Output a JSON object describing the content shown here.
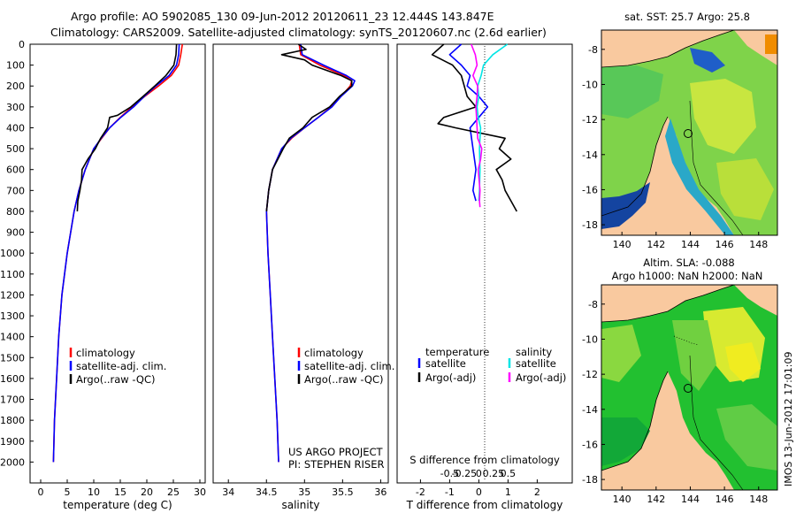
{
  "title": {
    "line1": "Argo profile: AO 5902085_130 09-Jun-2012 20120611_23 12.444S 143.847E",
    "line2": "Climatology: CARS2009. Satellite-adjusted climatology: synTS_20120607.nc (2.6d earlier)"
  },
  "colors": {
    "climatology": "#ff0000",
    "satellite": "#0000ff",
    "argo": "#000000",
    "salinity_satellite": "#00e5e5",
    "salinity_argo": "#ff00ff",
    "land": "#f9c99f"
  },
  "chart_data": [
    {
      "name": "temperature",
      "type": "line",
      "xlabel": "temperature (deg C)",
      "ylabel": "",
      "xlim": [
        -2,
        31
      ],
      "ylim": [
        2100,
        0
      ],
      "xticks": [
        "0",
        "5",
        "10",
        "15",
        "20",
        "25",
        "30"
      ],
      "xtick_values": [
        0,
        5,
        10,
        15,
        20,
        25,
        30
      ],
      "yticks": [
        "0",
        "100",
        "200",
        "300",
        "400",
        "500",
        "600",
        "700",
        "800",
        "900",
        "1000",
        "1100",
        "1200",
        "1300",
        "1400",
        "1500",
        "1600",
        "1700",
        "1800",
        "1900",
        "2000"
      ],
      "ytick_values": [
        0,
        100,
        200,
        300,
        400,
        500,
        600,
        700,
        800,
        900,
        1000,
        1100,
        1200,
        1300,
        1400,
        1500,
        1600,
        1700,
        1800,
        1900,
        2000
      ],
      "legend": [
        "climatology",
        "satellite-adj. clim.",
        "Argo(..raw -QC)"
      ],
      "series": [
        {
          "name": "climatology",
          "depth": [
            0,
            50,
            100,
            150,
            200,
            250,
            300,
            350,
            400,
            450,
            500,
            600,
            700,
            800,
            1000,
            1200,
            1400,
            1600,
            1800,
            2000
          ],
          "values": [
            26.7,
            26.4,
            26.0,
            24.6,
            22.2,
            19.6,
            17.2,
            15.0,
            13.0,
            11.5,
            10.0,
            8.4,
            7.2,
            6.3,
            5.0,
            4.0,
            3.4,
            3.0,
            2.6,
            2.4
          ]
        },
        {
          "name": "satellite",
          "depth": [
            0,
            50,
            100,
            150,
            200,
            250,
            300,
            350,
            400,
            450,
            500,
            600,
            700,
            800,
            1000,
            1200,
            1400,
            1600,
            1800,
            2000
          ],
          "values": [
            26.1,
            26.0,
            25.6,
            24.2,
            21.7,
            19.5,
            17.5,
            15.1,
            13.0,
            11.4,
            10.0,
            8.4,
            7.2,
            6.3,
            5.0,
            4.0,
            3.4,
            3.0,
            2.6,
            2.4
          ]
        },
        {
          "name": "argo",
          "depth": [
            0,
            50,
            100,
            150,
            200,
            250,
            300,
            340,
            350,
            400,
            450,
            500,
            550,
            600,
            650,
            700,
            750,
            800
          ],
          "values": [
            25.6,
            25.5,
            25.1,
            23.6,
            21.5,
            19.3,
            17.0,
            14.5,
            13.0,
            12.6,
            11.3,
            10.3,
            8.9,
            7.8,
            7.7,
            7.4,
            7.0,
            6.9
          ]
        }
      ]
    },
    {
      "name": "salinity",
      "type": "line",
      "xlabel": "salinity",
      "xlim": [
        33.8,
        36.1
      ],
      "ylim": [
        2100,
        0
      ],
      "xticks": [
        "34",
        "34.5",
        "35",
        "35.5",
        "36"
      ],
      "xtick_values": [
        34,
        34.5,
        35,
        35.5,
        36
      ],
      "legend": [
        "climatology",
        "satellite-adj. clim.",
        "Argo(..raw -QC)"
      ],
      "series": [
        {
          "name": "climatology",
          "depth": [
            0,
            50,
            100,
            150,
            175,
            200,
            250,
            300,
            350,
            400,
            450,
            500,
            600,
            700,
            800,
            1000,
            1200,
            1400,
            1600,
            1800,
            2000
          ],
          "values": [
            34.93,
            34.95,
            35.2,
            35.52,
            35.62,
            35.6,
            35.48,
            35.35,
            35.18,
            35.0,
            34.83,
            34.7,
            34.58,
            34.53,
            34.5,
            34.52,
            34.55,
            34.58,
            34.61,
            34.64,
            34.66
          ]
        },
        {
          "name": "satellite",
          "depth": [
            0,
            50,
            100,
            150,
            175,
            200,
            250,
            300,
            350,
            400,
            450,
            500,
            600,
            700,
            800,
            1000,
            1200,
            1400,
            1600,
            1800,
            2000
          ],
          "values": [
            34.95,
            34.97,
            35.25,
            35.55,
            35.66,
            35.63,
            35.48,
            35.36,
            35.18,
            35.0,
            34.82,
            34.7,
            34.58,
            34.53,
            34.5,
            34.52,
            34.55,
            34.58,
            34.61,
            34.64,
            34.66
          ]
        },
        {
          "name": "argo",
          "depth": [
            0,
            25,
            50,
            75,
            100,
            150,
            175,
            200,
            250,
            300,
            350,
            400,
            450,
            500,
            600,
            700,
            800
          ],
          "values": [
            34.92,
            35.02,
            34.7,
            35.0,
            35.1,
            35.48,
            35.62,
            35.62,
            35.46,
            35.33,
            35.1,
            34.98,
            34.8,
            34.72,
            34.58,
            34.53,
            34.5
          ]
        }
      ]
    },
    {
      "name": "difference",
      "type": "line",
      "xlabel": "T difference from climatology",
      "x2label": "S difference from climatology",
      "xlim": [
        -2.8,
        3.2
      ],
      "ylim": [
        2100,
        0
      ],
      "xticks": [
        "-2",
        "-1",
        "0",
        "1",
        "2"
      ],
      "xtick_values": [
        -2,
        -1,
        0,
        1,
        2
      ],
      "x2ticks": [
        "-0.5",
        "-0.25",
        "0",
        "0.25",
        "0.5"
      ],
      "x2tick_values": [
        -0.5,
        -0.25,
        0,
        0.25,
        0.5
      ],
      "legend": {
        "temperature": [
          "satellite",
          "Argo(-adj)"
        ],
        "salinity": [
          "satellite",
          "Argo(-adj)"
        ],
        "temperature_header": "temperature",
        "salinity_header": "salinity"
      },
      "series": [
        {
          "name": "T satellite",
          "depth": [
            0,
            50,
            100,
            150,
            200,
            250,
            300,
            350,
            400,
            500,
            600,
            700,
            750
          ],
          "values": [
            -0.6,
            -1.0,
            -0.6,
            -0.3,
            -0.4,
            0.0,
            0.3,
            0.0,
            -0.3,
            -0.2,
            -0.1,
            -0.2,
            -0.1
          ]
        },
        {
          "name": "T Argo(-adj)",
          "depth": [
            0,
            50,
            100,
            150,
            200,
            250,
            300,
            350,
            380,
            400,
            450,
            500,
            550,
            600,
            650,
            700,
            750,
            800
          ],
          "values": [
            -1.2,
            -1.6,
            -0.9,
            -0.6,
            -0.5,
            -0.4,
            -0.1,
            -1.2,
            -1.4,
            -0.8,
            0.9,
            0.7,
            1.1,
            0.6,
            0.8,
            0.9,
            1.1,
            1.3
          ]
        },
        {
          "name": "S satellite",
          "depth": [
            0,
            50,
            100,
            150,
            200,
            250,
            300,
            350,
            400,
            450,
            500,
            600,
            700,
            750
          ],
          "values": [
            0.49,
            0.24,
            0.08,
            0.04,
            -0.02,
            0.0,
            -0.03,
            -0.01,
            0.03,
            0.02,
            0.01,
            0.02,
            0.01,
            0.0
          ]
        },
        {
          "name": "S Argo(-adj)",
          "depth": [
            0,
            50,
            100,
            150,
            200,
            250,
            300,
            350,
            400,
            450,
            500,
            550,
            600,
            700,
            750,
            780
          ],
          "values": [
            -0.13,
            -0.06,
            -0.03,
            -0.1,
            -0.02,
            -0.03,
            -0.05,
            -0.04,
            -0.03,
            -0.02,
            0.05,
            0.03,
            -0.01,
            0.02,
            0.01,
            0.02
          ]
        }
      ]
    },
    {
      "name": "sst_map",
      "type": "heatmap",
      "title": "sat. SST: 25.7 Argo: 25.8",
      "xticks": [
        "140",
        "142",
        "144",
        "146",
        "148"
      ],
      "xtick_values": [
        140,
        142,
        144,
        146,
        148
      ],
      "yticks": [
        "-8",
        "-10",
        "-12",
        "-14",
        "-16",
        "-18"
      ],
      "ytick_values": [
        -8,
        -10,
        -12,
        -14,
        -16,
        -18
      ],
      "xlim": [
        138.8,
        149.1
      ],
      "ylim": [
        -18.6,
        -6.9
      ],
      "argo_position": {
        "lon": 143.847,
        "lat": -12.444
      }
    },
    {
      "name": "sla_map",
      "type": "heatmap",
      "title": "Altim. SLA: -0.088",
      "subtitle": "Argo h1000: NaN h2000: NaN",
      "xticks": [
        "140",
        "142",
        "144",
        "146",
        "148"
      ],
      "xtick_values": [
        140,
        142,
        144,
        146,
        148
      ],
      "yticks": [
        "-8",
        "-10",
        "-12",
        "-14",
        "-16",
        "-18"
      ],
      "ytick_values": [
        -8,
        -10,
        -12,
        -14,
        -16,
        -18
      ],
      "xlim": [
        138.8,
        149.1
      ],
      "ylim": [
        -18.6,
        -6.9
      ],
      "argo_position": {
        "lon": 143.847,
        "lat": -12.444
      }
    }
  ],
  "annotations": {
    "project": "US ARGO PROJECT",
    "pi": "PI: STEPHEN RISER",
    "credit": "IMOS 13-Jun-2012 17:01:09"
  }
}
